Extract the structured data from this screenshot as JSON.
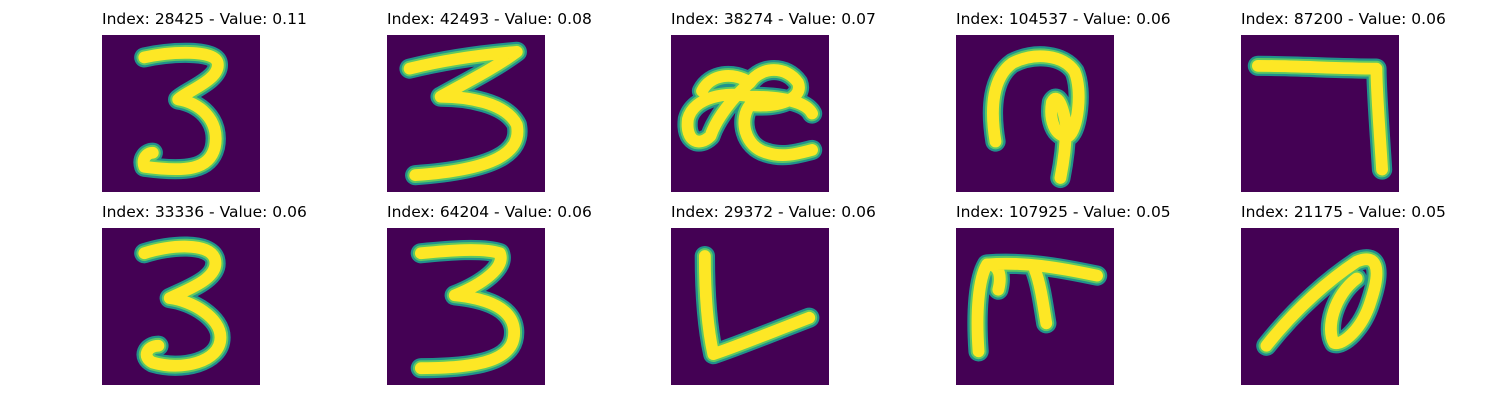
{
  "colors": {
    "background": "#440154",
    "stroke_core": "#fde725",
    "stroke_edge": "#21918c",
    "stroke_mid": "#5ec962"
  },
  "panels": [
    {
      "title": "Index: 28425 - Value: 0.11"
    },
    {
      "title": "Index: 42493 - Value: 0.08"
    },
    {
      "title": "Index: 38274 - Value: 0.07"
    },
    {
      "title": "Index: 104537 - Value: 0.06"
    },
    {
      "title": "Index: 87200 - Value: 0.06"
    },
    {
      "title": "Index: 33336 - Value: 0.06"
    },
    {
      "title": "Index: 64204 - Value: 0.06"
    },
    {
      "title": "Index: 29372 - Value: 0.06"
    },
    {
      "title": "Index: 107925 - Value: 0.05"
    },
    {
      "title": "Index: 21175 - Value: 0.05"
    }
  ]
}
